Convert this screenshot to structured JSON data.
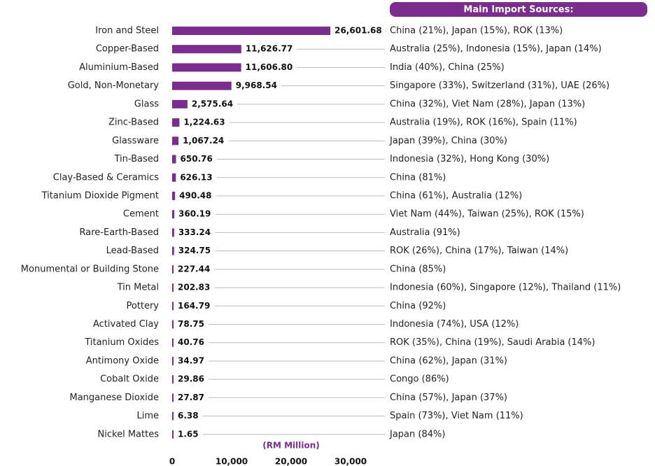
{
  "chart_data": {
    "type": "bar",
    "orientation": "horizontal",
    "header": "Main Import Sources:",
    "xlabel": "(RM Million)",
    "color": "#7b2d8e",
    "categories": [
      "Iron and Steel",
      "Copper-Based",
      "Aluminium-Based",
      "Gold, Non-Monetary",
      "Glass",
      "Zinc-Based",
      "Glassware",
      "Tin-Based",
      "Clay-Based & Ceramics",
      "Titanium Dioxide Pigment",
      "Cement",
      "Rare-Earth-Based",
      "Lead-Based",
      "Monumental or Building Stone",
      "Tin Metal",
      "Pottery",
      "Activated Clay",
      "Titanium Oxides",
      "Antimony Oxide",
      "Cobalt Oxide",
      "Manganese Dioxide",
      "Lime",
      "Nickel Mattes"
    ],
    "values": [
      26601.68,
      11626.77,
      11606.8,
      9968.54,
      2575.64,
      1224.63,
      1067.24,
      650.76,
      626.13,
      490.48,
      360.19,
      333.24,
      324.75,
      227.44,
      202.83,
      164.79,
      78.75,
      40.76,
      34.97,
      29.86,
      27.87,
      6.38,
      1.65
    ],
    "value_labels": [
      "26,601.68",
      "11,626.77",
      "11,606.80",
      "9,968.54",
      "2,575.64",
      "1,224.63",
      "1,067.24",
      "650.76",
      "626.13",
      "490.48",
      "360.19",
      "333.24",
      "324.75",
      "227.44",
      "202.83",
      "164.79",
      "78.75",
      "40.76",
      "34.97",
      "29.86",
      "27.87",
      "6.38",
      "1.65"
    ],
    "annotations": [
      "China (21%), Japan (15%), ROK (13%)",
      "Australia (25%), Indonesia (15%), Japan (14%)",
      "India (40%), China (25%)",
      "Singapore (33%), Switzerland (31%), UAE (26%)",
      "China (32%), Viet Nam (28%), Japan (13%)",
      "Australia (19%), ROK (16%), Spain (11%)",
      "Japan (39%), China (30%)",
      "Indonesia (32%), Hong Kong (30%)",
      "China (81%)",
      "China (61%), Australia (12%)",
      "Viet Nam (44%), Taiwan (25%), ROK (15%)",
      "Australia (91%)",
      "ROK (26%), China (17%), Taiwan (14%)",
      "China (85%)",
      "Indonesia (60%), Singapore (12%), Thailand (11%)",
      "China (92%)",
      "Indonesia (74%), USA (12%)",
      "ROK (35%), China (19%), Saudi Arabia (14%)",
      "China (62%), Japan (31%)",
      "Congo (86%)",
      "China (57%), Japan (37%)",
      "Spain (73%), Viet Nam (11%)",
      "Japan (84%)"
    ],
    "xlim": [
      0,
      30000
    ],
    "xticks": [
      0,
      {
        "value": 10000,
        "label": "10,000"
      },
      {
        "value": 20000,
        "label": "20,000"
      },
      {
        "value": 30000,
        "label": "30,000"
      }
    ]
  }
}
